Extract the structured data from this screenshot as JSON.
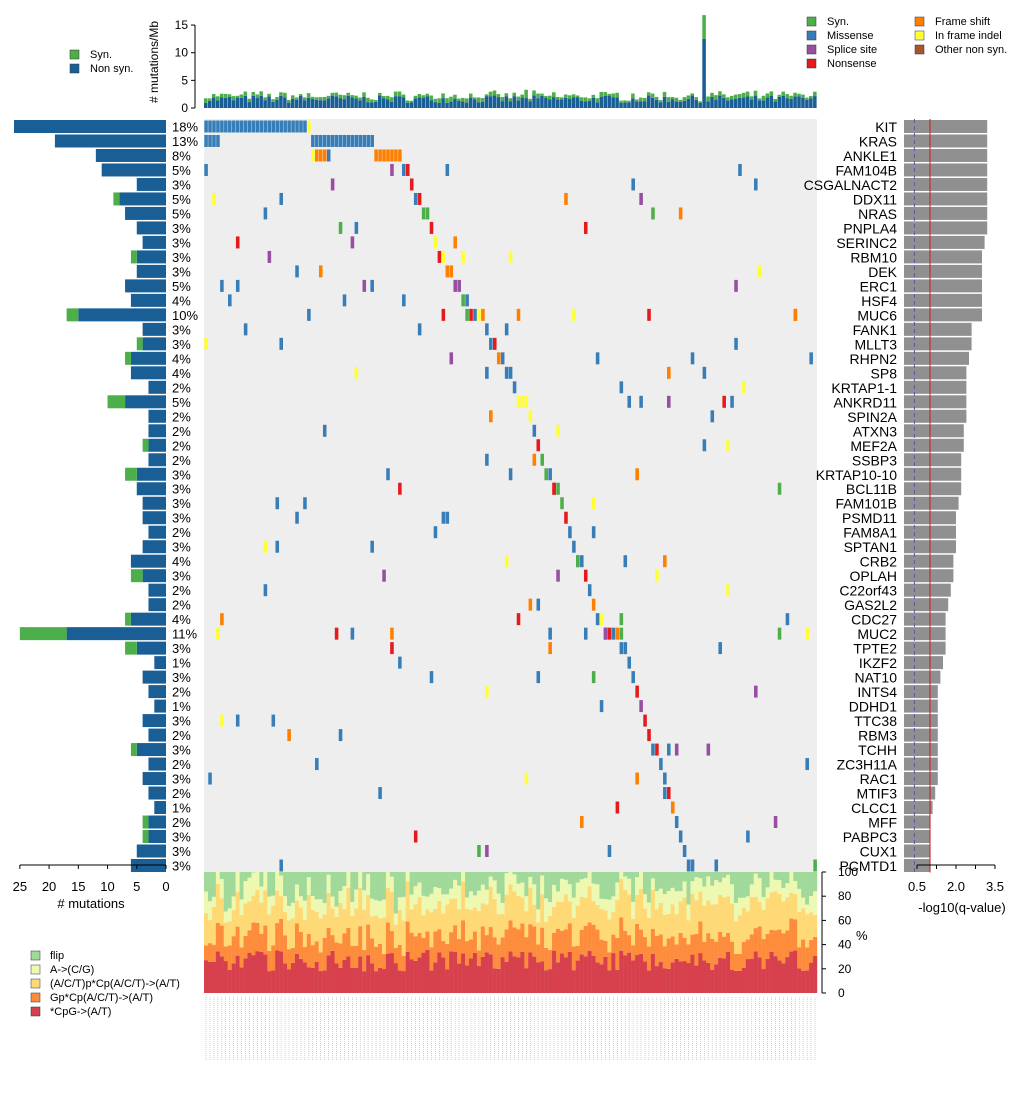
{
  "chart_data": {
    "type": "oncoplot",
    "n_samples": 155,
    "legend_top": [
      {
        "label": "Syn.",
        "color": "#4daf4a"
      },
      {
        "label": "Non syn.",
        "color": "#1a5e96"
      }
    ],
    "legend_variant": [
      {
        "label": "Syn.",
        "color": "#4daf4a"
      },
      {
        "label": "Missense",
        "color": "#377eb8"
      },
      {
        "label": "Splice site",
        "color": "#984ea3"
      },
      {
        "label": "Nonsense",
        "color": "#e41a1c"
      },
      {
        "label": "Frame shift",
        "color": "#ff7f00"
      },
      {
        "label": "In frame indel",
        "color": "#ffff33"
      },
      {
        "label": "Other non syn.",
        "color": "#a65628"
      }
    ],
    "tmb_axis": {
      "label": "# mutations/Mb",
      "ticks": [
        0,
        5,
        10,
        15
      ],
      "ylim": [
        0,
        17
      ]
    },
    "mutcount_axis": {
      "label": "# mutations",
      "ticks": [
        25,
        20,
        15,
        10,
        5,
        0
      ]
    },
    "qvalue_axis": {
      "label": "-log10(q-value)",
      "ticks": [
        "0.5",
        "2.0",
        "3.5"
      ],
      "xlim": [
        0,
        4
      ]
    },
    "spectrum_axis": {
      "label": "%",
      "ticks": [
        0,
        20,
        40,
        60,
        80,
        100
      ]
    },
    "legend_spectrum": [
      {
        "label": "flip",
        "color": "#a1d99b"
      },
      {
        "label": "A->(C/G)",
        "color": "#edf8b1"
      },
      {
        "label": "(A/C/T)p*Cp(A/C/T)->(A/T)",
        "color": "#fed976"
      },
      {
        "label": "Gp*Cp(A/C/T)->(A/T)",
        "color": "#fd8d3c"
      },
      {
        "label": "*CpG->(A/T)",
        "color": "#d7404d"
      }
    ],
    "genes": [
      {
        "name": "KIT",
        "pct": "18%",
        "nonsyn": 26,
        "syn": 0,
        "q": 3.2
      },
      {
        "name": "KRAS",
        "pct": "13%",
        "nonsyn": 19,
        "syn": 0,
        "q": 3.2
      },
      {
        "name": "ANKLE1",
        "pct": "8%",
        "nonsyn": 12,
        "syn": 0,
        "q": 3.2
      },
      {
        "name": "FAM104B",
        "pct": "5%",
        "nonsyn": 11,
        "syn": 0,
        "q": 3.2
      },
      {
        "name": "CSGALNACT2",
        "pct": "3%",
        "nonsyn": 5,
        "syn": 0,
        "q": 3.2
      },
      {
        "name": "DDX11",
        "pct": "5%",
        "nonsyn": 8,
        "syn": 1,
        "q": 3.2
      },
      {
        "name": "NRAS",
        "pct": "5%",
        "nonsyn": 7,
        "syn": 0,
        "q": 3.2
      },
      {
        "name": "PNPLA4",
        "pct": "3%",
        "nonsyn": 5,
        "syn": 0,
        "q": 3.2
      },
      {
        "name": "SERINC2",
        "pct": "3%",
        "nonsyn": 4,
        "syn": 0,
        "q": 3.1
      },
      {
        "name": "RBM10",
        "pct": "3%",
        "nonsyn": 5,
        "syn": 1,
        "q": 3.0
      },
      {
        "name": "DEK",
        "pct": "3%",
        "nonsyn": 5,
        "syn": 0,
        "q": 3.0
      },
      {
        "name": "ERC1",
        "pct": "5%",
        "nonsyn": 7,
        "syn": 0,
        "q": 3.0
      },
      {
        "name": "HSF4",
        "pct": "4%",
        "nonsyn": 6,
        "syn": 0,
        "q": 3.0
      },
      {
        "name": "MUC6",
        "pct": "10%",
        "nonsyn": 15,
        "syn": 2,
        "q": 3.0
      },
      {
        "name": "FANK1",
        "pct": "3%",
        "nonsyn": 4,
        "syn": 0,
        "q": 2.6
      },
      {
        "name": "MLLT3",
        "pct": "3%",
        "nonsyn": 4,
        "syn": 1,
        "q": 2.6
      },
      {
        "name": "RHPN2",
        "pct": "4%",
        "nonsyn": 6,
        "syn": 1,
        "q": 2.5
      },
      {
        "name": "SP8",
        "pct": "4%",
        "nonsyn": 6,
        "syn": 0,
        "q": 2.4
      },
      {
        "name": "KRTAP1-1",
        "pct": "2%",
        "nonsyn": 3,
        "syn": 0,
        "q": 2.4
      },
      {
        "name": "ANKRD11",
        "pct": "5%",
        "nonsyn": 7,
        "syn": 3,
        "q": 2.4
      },
      {
        "name": "SPIN2A",
        "pct": "2%",
        "nonsyn": 3,
        "syn": 0,
        "q": 2.4
      },
      {
        "name": "ATXN3",
        "pct": "2%",
        "nonsyn": 3,
        "syn": 0,
        "q": 2.3
      },
      {
        "name": "MEF2A",
        "pct": "2%",
        "nonsyn": 3,
        "syn": 1,
        "q": 2.3
      },
      {
        "name": "SSBP3",
        "pct": "2%",
        "nonsyn": 3,
        "syn": 0,
        "q": 2.2
      },
      {
        "name": "KRTAP10-10",
        "pct": "3%",
        "nonsyn": 5,
        "syn": 2,
        "q": 2.2
      },
      {
        "name": "BCL11B",
        "pct": "3%",
        "nonsyn": 5,
        "syn": 0,
        "q": 2.2
      },
      {
        "name": "FAM101B",
        "pct": "3%",
        "nonsyn": 4,
        "syn": 0,
        "q": 2.1
      },
      {
        "name": "PSMD11",
        "pct": "3%",
        "nonsyn": 4,
        "syn": 0,
        "q": 2.0
      },
      {
        "name": "FAM8A1",
        "pct": "2%",
        "nonsyn": 3,
        "syn": 0,
        "q": 2.0
      },
      {
        "name": "SPTAN1",
        "pct": "3%",
        "nonsyn": 4,
        "syn": 0,
        "q": 2.0
      },
      {
        "name": "CRB2",
        "pct": "4%",
        "nonsyn": 6,
        "syn": 0,
        "q": 1.9
      },
      {
        "name": "OPLAH",
        "pct": "3%",
        "nonsyn": 4,
        "syn": 2,
        "q": 1.9
      },
      {
        "name": "C22orf43",
        "pct": "2%",
        "nonsyn": 3,
        "syn": 0,
        "q": 1.8
      },
      {
        "name": "GAS2L2",
        "pct": "2%",
        "nonsyn": 3,
        "syn": 0,
        "q": 1.7
      },
      {
        "name": "CDC27",
        "pct": "4%",
        "nonsyn": 6,
        "syn": 1,
        "q": 1.6
      },
      {
        "name": "MUC2",
        "pct": "11%",
        "nonsyn": 17,
        "syn": 8,
        "q": 1.6
      },
      {
        "name": "TPTE2",
        "pct": "3%",
        "nonsyn": 5,
        "syn": 2,
        "q": 1.6
      },
      {
        "name": "IKZF2",
        "pct": "1%",
        "nonsyn": 2,
        "syn": 0,
        "q": 1.5
      },
      {
        "name": "NAT10",
        "pct": "3%",
        "nonsyn": 4,
        "syn": 0,
        "q": 1.4
      },
      {
        "name": "INTS4",
        "pct": "2%",
        "nonsyn": 3,
        "syn": 0,
        "q": 1.3
      },
      {
        "name": "DDHD1",
        "pct": "1%",
        "nonsyn": 2,
        "syn": 0,
        "q": 1.3
      },
      {
        "name": "TTC38",
        "pct": "3%",
        "nonsyn": 4,
        "syn": 0,
        "q": 1.3
      },
      {
        "name": "RBM3",
        "pct": "2%",
        "nonsyn": 3,
        "syn": 0,
        "q": 1.3
      },
      {
        "name": "TCHH",
        "pct": "3%",
        "nonsyn": 5,
        "syn": 1,
        "q": 1.3
      },
      {
        "name": "ZC3H11A",
        "pct": "2%",
        "nonsyn": 3,
        "syn": 0,
        "q": 1.3
      },
      {
        "name": "RAC1",
        "pct": "3%",
        "nonsyn": 4,
        "syn": 0,
        "q": 1.3
      },
      {
        "name": "MTIF3",
        "pct": "2%",
        "nonsyn": 3,
        "syn": 0,
        "q": 1.2
      },
      {
        "name": "CLCC1",
        "pct": "1%",
        "nonsyn": 2,
        "syn": 0,
        "q": 1.1
      },
      {
        "name": "MFF",
        "pct": "2%",
        "nonsyn": 3,
        "syn": 1,
        "q": 1.0
      },
      {
        "name": "PABPC3",
        "pct": "3%",
        "nonsyn": 3,
        "syn": 1,
        "q": 1.0
      },
      {
        "name": "CUX1",
        "pct": "3%",
        "nonsyn": 5,
        "syn": 0,
        "q": 1.0
      },
      {
        "name": "PCMTD1",
        "pct": "3%",
        "nonsyn": 6,
        "syn": 0,
        "q": 1.0
      }
    ],
    "q_threshold_lines": [
      {
        "value": 0.4,
        "style": "dashed"
      },
      {
        "value": 1.0,
        "style": "solid"
      }
    ]
  }
}
